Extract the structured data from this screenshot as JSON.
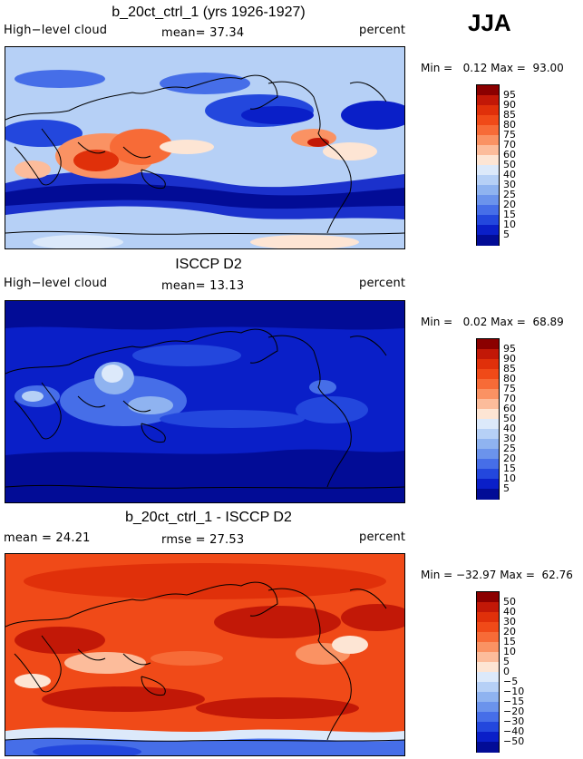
{
  "season": "JJA",
  "panels": [
    {
      "title": "b_20ct_ctrl_1 (yrs 1926-1927)",
      "left_label": "High−level cloud",
      "center_label": "mean=  37.34",
      "right_label": "percent",
      "minmax": "Min =   0.12 Max =  93.00",
      "colorbar_labels": [
        "95",
        "90",
        "85",
        "80",
        "75",
        "70",
        "60",
        "50",
        "40",
        "30",
        "25",
        "20",
        "15",
        "10",
        "5"
      ],
      "colorbar_colors": [
        "#8b0000",
        "#c21807",
        "#e0300a",
        "#f04a18",
        "#f76b37",
        "#fa9263",
        "#fcbc9b",
        "#fde5d4",
        "#dce9fa",
        "#b6d0f6",
        "#8fb3f0",
        "#6b93ec",
        "#466ee8",
        "#2347dd",
        "#0a1fc8",
        "#020c96"
      ]
    },
    {
      "title": "ISCCP D2",
      "left_label": "High−level cloud",
      "center_label": "mean=  13.13",
      "right_label": "percent",
      "minmax": "Min =   0.02 Max =  68.89",
      "colorbar_labels": [
        "95",
        "90",
        "85",
        "80",
        "75",
        "70",
        "60",
        "50",
        "40",
        "30",
        "25",
        "20",
        "15",
        "10",
        "5"
      ],
      "colorbar_colors": [
        "#8b0000",
        "#c21807",
        "#e0300a",
        "#f04a18",
        "#f76b37",
        "#fa9263",
        "#fcbc9b",
        "#fde5d4",
        "#dce9fa",
        "#b6d0f6",
        "#8fb3f0",
        "#6b93ec",
        "#466ee8",
        "#2347dd",
        "#0a1fc8",
        "#020c96"
      ]
    },
    {
      "title": "b_20ct_ctrl_1 - ISCCP D2",
      "left_label": "mean =  24.21",
      "center_label": "rmse =  27.53",
      "right_label": "percent",
      "minmax": "Min = −32.97 Max =  62.76",
      "colorbar_labels": [
        "50",
        "40",
        "30",
        "20",
        "15",
        "10",
        "5",
        "0",
        "−5",
        "−10",
        "−15",
        "−20",
        "−30",
        "−40",
        "−50"
      ],
      "colorbar_colors": [
        "#8b0000",
        "#c21807",
        "#e0300a",
        "#f04a18",
        "#f76b37",
        "#fa9263",
        "#fcbc9b",
        "#fde5d4",
        "#dce9fa",
        "#b6d0f6",
        "#8fb3f0",
        "#6b93ec",
        "#466ee8",
        "#2347dd",
        "#0a1fc8",
        "#020c96"
      ]
    }
  ]
}
